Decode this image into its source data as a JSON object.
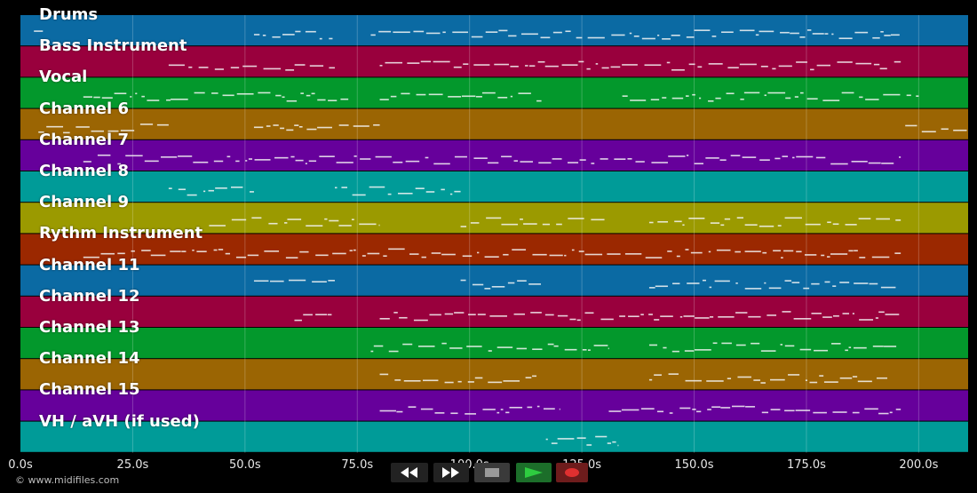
{
  "tracks": [
    {
      "label": "Drums",
      "color": "#0b6aa3"
    },
    {
      "label": "Bass Instrument",
      "color": "#99003d"
    },
    {
      "label": "Vocal",
      "color": "#03982c"
    },
    {
      "label": "Channel 6",
      "color": "#9b6503"
    },
    {
      "label": "Channel 7",
      "color": "#66009b"
    },
    {
      "label": "Channel 8",
      "color": "#009b98"
    },
    {
      "label": "Channel 9",
      "color": "#9b9a00"
    },
    {
      "label": "Rythm Instrument",
      "color": "#9b2800"
    },
    {
      "label": "Channel 11",
      "color": "#0b6aa3"
    },
    {
      "label": "Channel 12",
      "color": "#99003d"
    },
    {
      "label": "Channel 13",
      "color": "#03982c"
    },
    {
      "label": "Channel 14",
      "color": "#9b6503"
    },
    {
      "label": "Channel 15",
      "color": "#66009b"
    },
    {
      "label": "VH / aVH (if used)",
      "color": "#009b98"
    }
  ],
  "timeline": {
    "ticks": [
      "0.0s",
      "25.0s",
      "50.0s",
      "75.0s",
      "100.0s",
      "125.0s",
      "150.0s",
      "175.0s",
      "200.0s"
    ],
    "max_seconds": 211
  },
  "footer": {
    "copyright": "© www.midifiles.com"
  },
  "transport": {
    "rewind": "rewind-icon",
    "fast_forward": "fast-forward-icon",
    "stop": "stop-icon",
    "play": "play-icon",
    "record": "record-icon",
    "colors": {
      "play_bg": "#1c6e2a",
      "record_bg": "#6e1c1c",
      "button_bg": "#3a3a3a"
    }
  }
}
